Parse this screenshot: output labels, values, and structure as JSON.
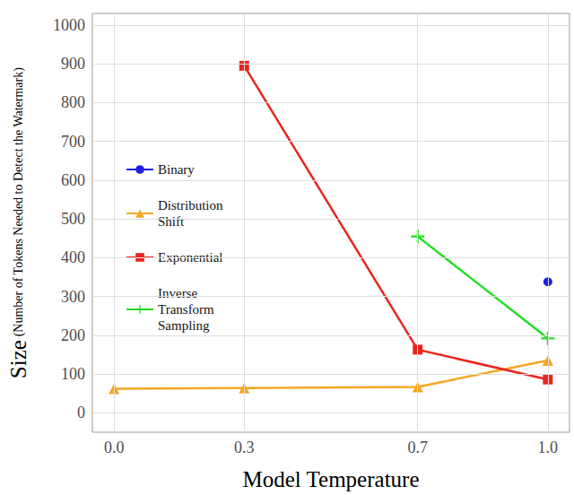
{
  "chart_data": {
    "type": "line",
    "xlabel": "Model Temperature",
    "ylabel": "Size (Number of Tokens Needed to Detect the Watermark)",
    "xlim": [
      -0.05,
      1.05
    ],
    "xticks": [
      {
        "value": 0,
        "label": "0.0"
      },
      0.3,
      0.7,
      {
        "value": 1,
        "label": "1.0"
      }
    ],
    "ylim": [
      -50,
      1030
    ],
    "yticks": [
      0,
      100,
      200,
      300,
      400,
      500,
      600,
      700,
      800,
      900,
      1000
    ],
    "grid": true,
    "legend": "left",
    "series": [
      {
        "name": "Binary",
        "color": "#1f1fe6",
        "marker": "circle",
        "x": [
          1
        ],
        "values": [
          338
        ]
      },
      {
        "name": "Distribution Shift",
        "color": "#f5a623",
        "marker": "triangle",
        "x": [
          0,
          0.3,
          0.7,
          1
        ],
        "values": [
          62,
          64,
          67,
          135
        ]
      },
      {
        "name": "Exponential",
        "color": "#e8251f",
        "marker": "square",
        "x": [
          0.3,
          0.7,
          1
        ],
        "values": [
          895,
          163,
          86
        ]
      },
      {
        "name": "Inverse Transform Sampling",
        "color": "#22dd22",
        "marker": "plus",
        "x": [
          0.7,
          1
        ],
        "values": [
          455,
          192
        ]
      }
    ]
  }
}
